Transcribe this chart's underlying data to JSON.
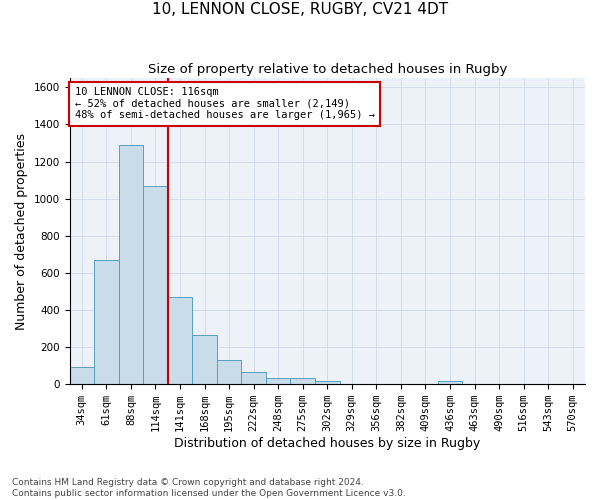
{
  "title_line1": "10, LENNON CLOSE, RUGBY, CV21 4DT",
  "title_line2": "Size of property relative to detached houses in Rugby",
  "xlabel": "Distribution of detached houses by size in Rugby",
  "ylabel": "Number of detached properties",
  "footnote": "Contains HM Land Registry data © Crown copyright and database right 2024.\nContains public sector information licensed under the Open Government Licence v3.0.",
  "bar_labels": [
    "34sqm",
    "61sqm",
    "88sqm",
    "114sqm",
    "141sqm",
    "168sqm",
    "195sqm",
    "222sqm",
    "248sqm",
    "275sqm",
    "302sqm",
    "329sqm",
    "356sqm",
    "382sqm",
    "409sqm",
    "436sqm",
    "463sqm",
    "490sqm",
    "516sqm",
    "543sqm",
    "570sqm"
  ],
  "bar_values": [
    95,
    670,
    1290,
    1070,
    470,
    265,
    130,
    65,
    35,
    35,
    15,
    0,
    0,
    0,
    0,
    15,
    0,
    0,
    0,
    0,
    0
  ],
  "bar_color": "#c9dcea",
  "bar_edge_color": "#5a9fc0",
  "ylim": [
    0,
    1650
  ],
  "yticks": [
    0,
    200,
    400,
    600,
    800,
    1000,
    1200,
    1400,
    1600
  ],
  "property_line_x": 3.5,
  "annotation_text": "10 LENNON CLOSE: 116sqm\n← 52% of detached houses are smaller (2,149)\n48% of semi-detached houses are larger (1,965) →",
  "annotation_box_color": "#cc0000",
  "grid_color": "#cdd8e8",
  "bg_color": "#edf2f8",
  "title_fontsize": 11,
  "subtitle_fontsize": 9.5,
  "axis_label_fontsize": 9,
  "tick_fontsize": 7.5,
  "footnote_fontsize": 6.5
}
